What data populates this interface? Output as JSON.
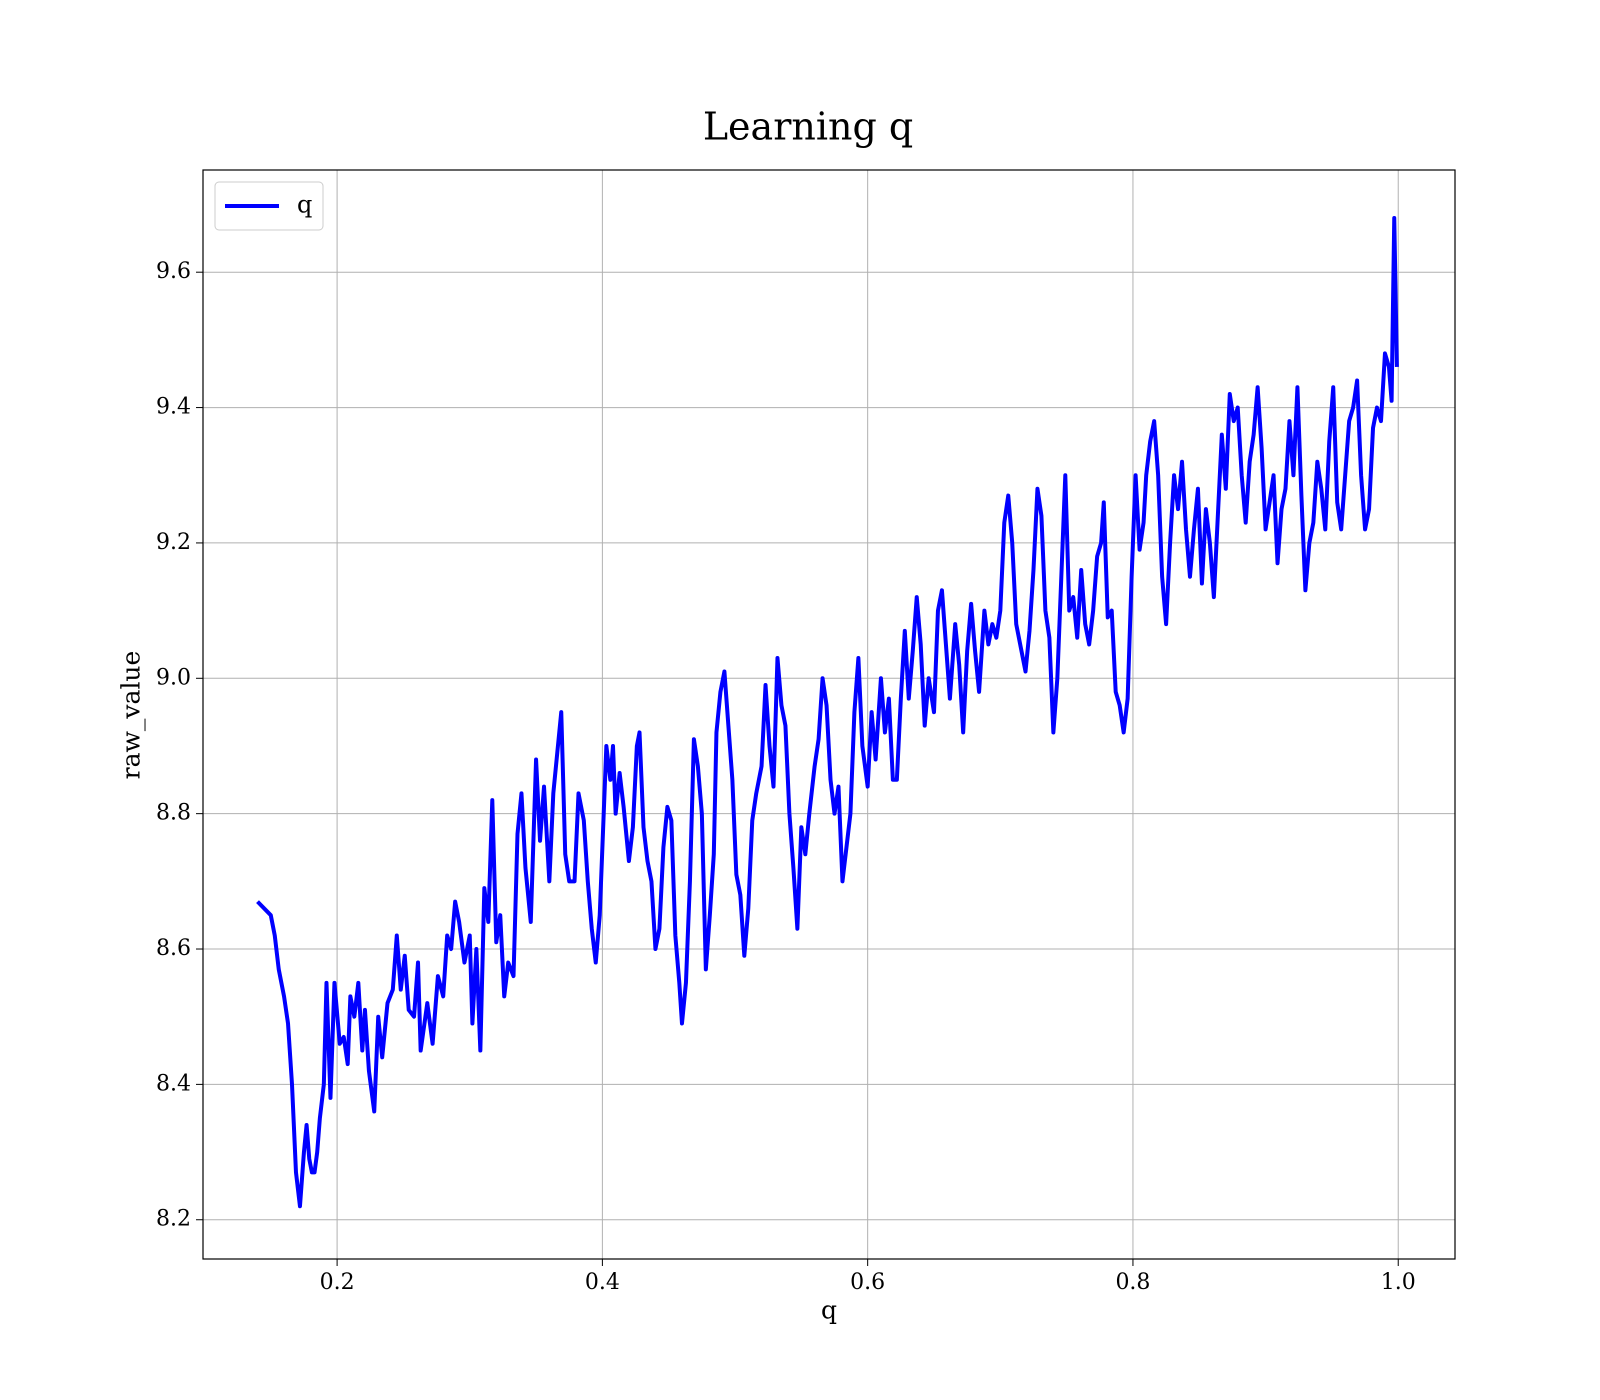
{
  "chart_data": {
    "type": "line",
    "title": "Learning q",
    "x_label": "q",
    "y_label": "raw_value",
    "x": [
      0.14,
      0.15,
      0.153,
      0.156,
      0.16,
      0.163,
      0.166,
      0.169,
      0.172,
      0.175,
      0.177,
      0.179,
      0.181,
      0.183,
      0.185,
      0.187,
      0.19,
      0.192,
      0.195,
      0.198,
      0.202,
      0.205,
      0.208,
      0.21,
      0.213,
      0.216,
      0.219,
      0.221,
      0.224,
      0.228,
      0.231,
      0.234,
      0.238,
      0.242,
      0.245,
      0.248,
      0.251,
      0.254,
      0.258,
      0.261,
      0.263,
      0.268,
      0.272,
      0.276,
      0.28,
      0.283,
      0.286,
      0.289,
      0.292,
      0.296,
      0.3,
      0.302,
      0.305,
      0.308,
      0.311,
      0.314,
      0.317,
      0.32,
      0.323,
      0.326,
      0.329,
      0.333,
      0.336,
      0.339,
      0.342,
      0.346,
      0.35,
      0.353,
      0.356,
      0.36,
      0.363,
      0.366,
      0.369,
      0.372,
      0.375,
      0.379,
      0.382,
      0.386,
      0.389,
      0.392,
      0.395,
      0.398,
      0.4,
      0.403,
      0.406,
      0.408,
      0.41,
      0.413,
      0.416,
      0.42,
      0.423,
      0.426,
      0.428,
      0.431,
      0.434,
      0.437,
      0.44,
      0.443,
      0.446,
      0.449,
      0.452,
      0.455,
      0.458,
      0.46,
      0.463,
      0.466,
      0.469,
      0.472,
      0.475,
      0.478,
      0.481,
      0.484,
      0.486,
      0.489,
      0.492,
      0.495,
      0.498,
      0.501,
      0.504,
      0.507,
      0.51,
      0.513,
      0.516,
      0.52,
      0.523,
      0.526,
      0.529,
      0.532,
      0.535,
      0.538,
      0.541,
      0.544,
      0.547,
      0.55,
      0.553,
      0.556,
      0.56,
      0.563,
      0.566,
      0.569,
      0.572,
      0.575,
      0.578,
      0.581,
      0.584,
      0.587,
      0.59,
      0.593,
      0.596,
      0.6,
      0.603,
      0.606,
      0.61,
      0.613,
      0.616,
      0.619,
      0.622,
      0.625,
      0.628,
      0.631,
      0.634,
      0.637,
      0.64,
      0.643,
      0.646,
      0.65,
      0.653,
      0.656,
      0.659,
      0.662,
      0.666,
      0.669,
      0.672,
      0.675,
      0.678,
      0.681,
      0.684,
      0.688,
      0.691,
      0.694,
      0.697,
      0.7,
      0.703,
      0.706,
      0.709,
      0.712,
      0.716,
      0.719,
      0.722,
      0.725,
      0.728,
      0.731,
      0.734,
      0.737,
      0.74,
      0.743,
      0.746,
      0.749,
      0.752,
      0.755,
      0.758,
      0.761,
      0.764,
      0.767,
      0.77,
      0.773,
      0.776,
      0.778,
      0.781,
      0.784,
      0.787,
      0.79,
      0.793,
      0.796,
      0.799,
      0.802,
      0.805,
      0.808,
      0.81,
      0.813,
      0.816,
      0.819,
      0.822,
      0.825,
      0.828,
      0.831,
      0.834,
      0.837,
      0.84,
      0.843,
      0.846,
      0.849,
      0.852,
      0.855,
      0.858,
      0.861,
      0.864,
      0.867,
      0.87,
      0.873,
      0.876,
      0.879,
      0.882,
      0.885,
      0.888,
      0.891,
      0.894,
      0.897,
      0.9,
      0.903,
      0.906,
      0.909,
      0.912,
      0.915,
      0.918,
      0.921,
      0.924,
      0.927,
      0.93,
      0.933,
      0.936,
      0.939,
      0.942,
      0.945,
      0.948,
      0.951,
      0.954,
      0.957,
      0.96,
      0.963,
      0.966,
      0.969,
      0.972,
      0.975,
      0.978,
      0.981,
      0.984,
      0.987,
      0.99,
      0.993,
      0.995,
      0.997,
      0.999
    ],
    "series": [
      {
        "name": "q",
        "color": "#0000ff",
        "values": [
          8.67,
          8.65,
          8.62,
          8.57,
          8.53,
          8.49,
          8.4,
          8.27,
          8.22,
          8.3,
          8.34,
          8.29,
          8.27,
          8.27,
          8.3,
          8.35,
          8.4,
          8.55,
          8.38,
          8.55,
          8.46,
          8.47,
          8.43,
          8.53,
          8.5,
          8.55,
          8.45,
          8.51,
          8.42,
          8.36,
          8.5,
          8.44,
          8.52,
          8.54,
          8.62,
          8.54,
          8.59,
          8.51,
          8.5,
          8.58,
          8.45,
          8.52,
          8.46,
          8.56,
          8.53,
          8.62,
          8.6,
          8.67,
          8.64,
          8.58,
          8.62,
          8.49,
          8.6,
          8.45,
          8.69,
          8.64,
          8.82,
          8.61,
          8.65,
          8.53,
          8.58,
          8.56,
          8.77,
          8.83,
          8.72,
          8.64,
          8.88,
          8.76,
          8.84,
          8.7,
          8.83,
          8.89,
          8.95,
          8.74,
          8.7,
          8.7,
          8.83,
          8.79,
          8.7,
          8.63,
          8.58,
          8.65,
          8.75,
          8.9,
          8.85,
          8.9,
          8.8,
          8.86,
          8.81,
          8.73,
          8.78,
          8.9,
          8.92,
          8.78,
          8.73,
          8.7,
          8.6,
          8.63,
          8.75,
          8.81,
          8.79,
          8.62,
          8.55,
          8.49,
          8.55,
          8.7,
          8.91,
          8.87,
          8.8,
          8.57,
          8.65,
          8.74,
          8.92,
          8.98,
          9.01,
          8.93,
          8.85,
          8.71,
          8.68,
          8.59,
          8.66,
          8.79,
          8.83,
          8.87,
          8.99,
          8.9,
          8.84,
          9.03,
          8.96,
          8.93,
          8.8,
          8.72,
          8.63,
          8.78,
          8.74,
          8.8,
          8.87,
          8.91,
          9.0,
          8.96,
          8.85,
          8.8,
          8.84,
          8.7,
          8.75,
          8.8,
          8.95,
          9.03,
          8.9,
          8.84,
          8.95,
          8.88,
          9.0,
          8.92,
          8.97,
          8.85,
          8.85,
          8.97,
          9.07,
          8.97,
          9.04,
          9.12,
          9.05,
          8.93,
          9.0,
          8.95,
          9.1,
          9.13,
          9.05,
          8.97,
          9.08,
          9.02,
          8.92,
          9.04,
          9.11,
          9.04,
          8.98,
          9.1,
          9.05,
          9.08,
          9.06,
          9.1,
          9.23,
          9.27,
          9.2,
          9.08,
          9.04,
          9.01,
          9.07,
          9.16,
          9.28,
          9.24,
          9.1,
          9.06,
          8.92,
          9.0,
          9.15,
          9.3,
          9.1,
          9.12,
          9.06,
          9.16,
          9.08,
          9.05,
          9.1,
          9.18,
          9.2,
          9.26,
          9.09,
          9.1,
          8.98,
          8.96,
          8.92,
          8.97,
          9.15,
          9.3,
          9.19,
          9.23,
          9.3,
          9.35,
          9.38,
          9.3,
          9.15,
          9.08,
          9.2,
          9.3,
          9.25,
          9.32,
          9.22,
          9.15,
          9.22,
          9.28,
          9.14,
          9.25,
          9.2,
          9.12,
          9.24,
          9.36,
          9.28,
          9.42,
          9.38,
          9.4,
          9.3,
          9.23,
          9.32,
          9.36,
          9.43,
          9.34,
          9.22,
          9.26,
          9.3,
          9.17,
          9.25,
          9.28,
          9.38,
          9.3,
          9.43,
          9.27,
          9.13,
          9.2,
          9.23,
          9.32,
          9.28,
          9.22,
          9.35,
          9.43,
          9.26,
          9.22,
          9.3,
          9.38,
          9.4,
          9.44,
          9.3,
          9.22,
          9.25,
          9.37,
          9.4,
          9.38,
          9.48,
          9.46,
          9.41,
          9.68,
          9.46
        ]
      }
    ],
    "xlim": [
      0.0989,
      1.0428
    ],
    "ylim": [
      8.142,
      9.751
    ],
    "xticks": [
      0.2,
      0.4,
      0.6,
      0.8,
      {
        "value": 1,
        "label": "1.0"
      }
    ],
    "yticks": [
      8.2,
      8.4,
      8.6,
      8.8,
      {
        "value": 9,
        "label": "9.0"
      },
      9.2,
      9.4,
      9.6
    ],
    "grid": true,
    "legend": "upper left"
  }
}
